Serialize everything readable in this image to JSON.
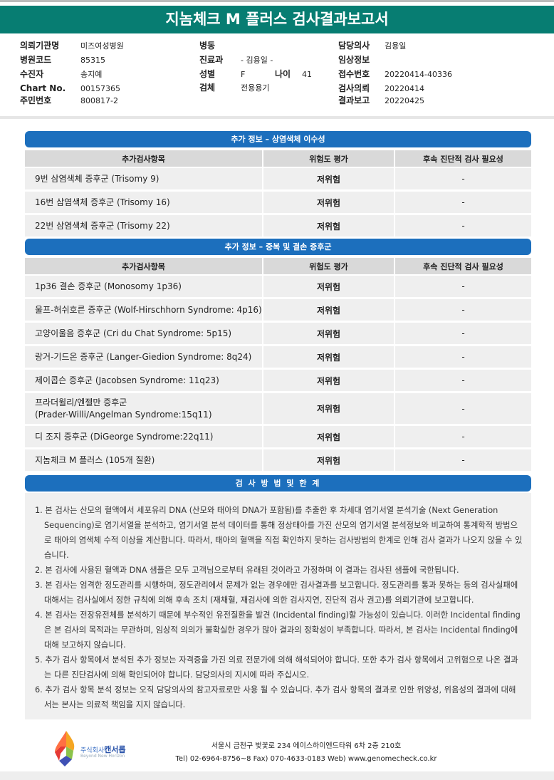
{
  "title": "지놈체크 M 플러스 검사결과보고서",
  "info": {
    "col1": [
      {
        "k": "의뢰기관명",
        "v": "미즈여성병원"
      },
      {
        "k": "병원코드",
        "v": "85315"
      },
      {
        "k": "수진자",
        "v": "송지예"
      },
      {
        "k": "Chart No.",
        "v": "00157365"
      },
      {
        "k": "주민번호",
        "v": "800817-2"
      }
    ],
    "col2": [
      {
        "k": "병동",
        "v": ""
      },
      {
        "k": "진료과",
        "v": "- 김용일 -"
      },
      {
        "k": "성별",
        "v": "F"
      },
      {
        "k": "검체",
        "v": "전용용기"
      }
    ],
    "age_label": "나이",
    "age": "41",
    "col3": [
      {
        "k": "담당의사",
        "v": "김용일"
      },
      {
        "k": "임상정보",
        "v": ""
      },
      {
        "k": "접수번호",
        "v": "20220414-40336"
      },
      {
        "k": "검사의뢰",
        "v": "20220414"
      },
      {
        "k": "결과보고",
        "v": "20220425"
      }
    ]
  },
  "columns": {
    "item": "추가검사항목",
    "risk": "위험도 평가",
    "followup": "후속 진단적 검사 필요성"
  },
  "section1": {
    "title": "추가 정보 – 상염색체 이수성",
    "rows": [
      {
        "item": "9번 삼염색체 증후군 (Trisomy 9)",
        "risk": "저위험",
        "followup": "-"
      },
      {
        "item": "16번 삼염색체 증후군 (Trisomy 16)",
        "risk": "저위험",
        "followup": "-"
      },
      {
        "item": "22번 삼염색체 증후군 (Trisomy 22)",
        "risk": "저위험",
        "followup": "-"
      }
    ]
  },
  "section2": {
    "title": "추가 정보 – 중복 및 결손 증후군",
    "rows": [
      {
        "item": "1p36 결손 증후군 (Monosomy 1p36)",
        "risk": "저위험",
        "followup": "-"
      },
      {
        "item": "울프-허쉬호른 증후군 (Wolf-Hirschhorn Syndrome: 4p16)",
        "risk": "저위험",
        "followup": "-"
      },
      {
        "item": "고양이울음 증후군 (Cri du Chat Syndrome: 5p15)",
        "risk": "저위험",
        "followup": "-"
      },
      {
        "item": "랑거-기드온 증후군 (Langer-Giedion Syndrome: 8q24)",
        "risk": "저위험",
        "followup": "-"
      },
      {
        "item": "제이콥슨 증후군 (Jacobsen Syndrome: 11q23)",
        "risk": "저위험",
        "followup": "-"
      },
      {
        "item": "프라더윌리/엔젤만 증후군\n(Prader-Willi/Angelman Syndrome:15q11)",
        "risk": "저위험",
        "followup": "-"
      },
      {
        "item": "디 조지 증후군 (DiGeorge Syndrome:22q11)",
        "risk": "저위험",
        "followup": "-"
      },
      {
        "item": "지놈체크 M 플러스 (105개 질환)",
        "risk": "저위험",
        "followup": "-"
      }
    ]
  },
  "methods": {
    "title": "검 사 방 법 및 한 계",
    "items": [
      "1. 본 검사는 산모의 혈액에서 세포유리 DNA (산모와 태아의 DNA가 포함됨)를 추출한 후 차세대 염기서열 분석기술 (Next Generation Sequencing)로 염기서열을 분석하고, 염기서열 분석 데이터를 통해 정상태아를 가진 산모의 염기서열 분석정보와 비교하여 통계학적 방법으로 태아의 염색체 수적 이상을 계산합니다. 따라서, 태아의 혈액을 직접 확인하지 못하는 검사방법의 한계로 인해 검사 결과가 나오지 않을 수 있습니다.",
      "2. 본 검사에 사용된 혈액과 DNA 샘플은 모두 고객님으로부터 유래된 것이라고 가정하며 이 결과는 검사된 샘플에 국한됩니다.",
      "3. 본 검사는 엄격한 정도관리를 시행하며, 정도관리에서 문제가 없는 경우에만 검사결과를 보고합니다. 정도관리를 통과 못하는 등의 검사실패에 대해서는 검사실에서 정한 규칙에 의해 후속 조치 (재채혈, 재검사에 의한 검사지연, 진단적 검사 권고)를 의뢰기관에 보고합니다.",
      "4. 본 검사는 전장유전체를 분석하기 때문에 부수적인 유전질환을 발견 (Incidental finding)할 가능성이 있습니다. 이러한 Incidental finding은 본 검사의 목적과는 무관하며, 임상적 의의가 불확실한 경우가 많아 결과의 정확성이 부족합니다. 따라서, 본 검사는 Incidental finding에 대해 보고하지 않습니다.",
      "5. 추가 검사 항목에서 분석된 추가 정보는 자격증을 가진 의료 전문가에 의해 해석되어야 합니다. 또한 추가 검사 항목에서 고위험으로 나온 결과는 다른 진단검사에 의해 확인되어야 합니다. 담당의사의 지시에 따라 주십시오.",
      "6. 추가 검사 항목 분석 정보는 오직 담당의사의 참고자료로만 사용 될 수 있습니다. 추가 검사 항목의 결과로 인한 위양성, 위음성의 결과에 대해서는 본사는 의료적 책임을 지지 않습니다."
    ]
  },
  "footer": {
    "company_prefix": "주식회사",
    "company": "캔서롭",
    "slogan": "Beyond New Horizon",
    "address": "서울시 금천구 벚꽃로 234 에이스하이엔드타워 6차 2층 210호",
    "contact": "Tel) 02-6964-8756~8  Fax) 070-4633-0183  Web) www.genomecheck.co.kr"
  },
  "colors": {
    "title_bg": "#077d72",
    "section_bg": "#1c6fbd"
  }
}
